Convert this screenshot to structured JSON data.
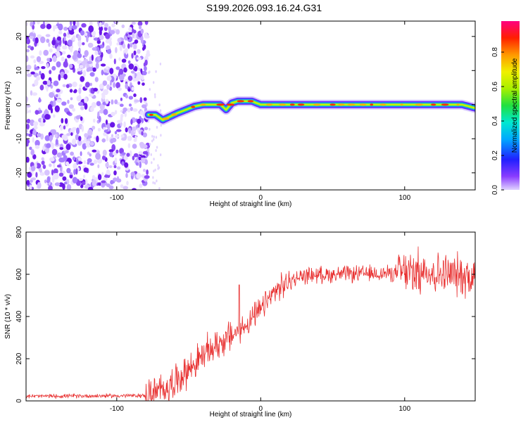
{
  "title": "S199.2026.093.16.24.G31",
  "chart_data": [
    {
      "type": "heatmap",
      "name": "spectrogram",
      "xlabel": "Height of straight line (km)",
      "ylabel": "Frequency (Hz)",
      "xlim": [
        -163,
        149
      ],
      "ylim": [
        -25,
        24.5
      ],
      "xticks": [
        -100,
        0,
        100
      ],
      "yticks": [
        -20,
        -10,
        0,
        10,
        20
      ],
      "noise_region_x": [
        -163,
        -78
      ],
      "signal_track": {
        "x": [
          -78,
          -73,
          -68,
          -63,
          -58,
          -52,
          -46,
          -40,
          -34,
          -28,
          -24,
          -20,
          -16,
          -12,
          -6,
          0,
          10,
          20,
          30,
          40,
          50,
          60,
          70,
          80,
          90,
          100,
          110,
          120,
          130,
          140,
          149
        ],
        "freq": [
          -3,
          -3,
          -4.5,
          -3.5,
          -2.5,
          -1.5,
          -0.5,
          0,
          0,
          0,
          -1.5,
          0.5,
          1,
          1,
          1,
          0,
          0,
          0,
          0,
          0,
          0,
          0,
          0,
          0,
          0,
          0,
          0,
          0,
          0,
          0,
          -1
        ]
      },
      "colorbar": {
        "label": "Normalized spectral amplitude",
        "ticks": [
          0.0,
          0.2,
          0.4,
          0.6,
          0.8
        ],
        "range": [
          0,
          0.98
        ]
      }
    },
    {
      "type": "line",
      "name": "snr",
      "xlabel": "Height of straight line (km)",
      "ylabel": "SNR (10 * v/v)",
      "xlim": [
        -163,
        149
      ],
      "ylim": [
        0,
        800
      ],
      "xticks": [
        -100,
        0,
        100
      ],
      "yticks": [
        0,
        200,
        400,
        600,
        800
      ],
      "color": "#e83030",
      "trend": {
        "x": [
          -163,
          -80,
          -70,
          -60,
          -50,
          -40,
          -30,
          -20,
          -10,
          0,
          10,
          20,
          30,
          50,
          70,
          90,
          110,
          130,
          149
        ],
        "y": [
          22,
          25,
          45,
          90,
          150,
          215,
          270,
          310,
          360,
          430,
          520,
          565,
          595,
          600,
          602,
          605,
          610,
          600,
          590
        ]
      },
      "noise_amplitude_note": "spiky high-frequency noise superimposed on trend",
      "spike": {
        "x": -15,
        "y": 550
      }
    }
  ]
}
